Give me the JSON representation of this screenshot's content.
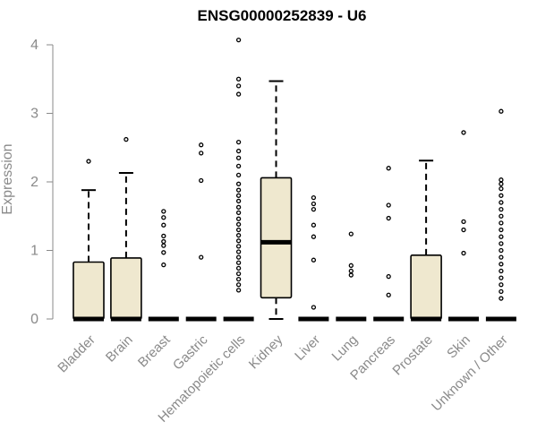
{
  "chart_data": {
    "type": "boxplot",
    "title": "ENSG00000252839 - U6",
    "xlabel": "",
    "ylabel": "Expression",
    "ylim": [
      0,
      4.1
    ],
    "yticks": [
      0,
      1,
      2,
      3,
      4
    ],
    "colors": {
      "box_fill": "#EFE8CF",
      "stroke": "#000000",
      "axis": "#8a8a8a"
    },
    "categories": [
      "Bladder",
      "Brain",
      "Breast",
      "Gastric",
      "Hematopoietic cells",
      "Kidney",
      "Liver",
      "Lung",
      "Pancreas",
      "Prostate",
      "Skin",
      "Unknown / Other"
    ],
    "boxes": [
      {
        "category": "Bladder",
        "whisker_low": 0,
        "q1": 0,
        "median": 0,
        "q3": 0.83,
        "whisker_high": 1.88,
        "outliers": [
          2.3
        ]
      },
      {
        "category": "Brain",
        "whisker_low": 0,
        "q1": 0,
        "median": 0,
        "q3": 0.89,
        "whisker_high": 2.13,
        "outliers": [
          2.62
        ]
      },
      {
        "category": "Breast",
        "whisker_low": 0,
        "q1": 0,
        "median": 0,
        "q3": 0,
        "whisker_high": 0,
        "outliers": [
          0.79,
          0.97,
          1.07,
          1.13,
          1.21,
          1.37,
          1.48,
          1.57
        ]
      },
      {
        "category": "Gastric",
        "whisker_low": 0,
        "q1": 0,
        "median": 0,
        "q3": 0,
        "whisker_high": 0,
        "outliers": [
          0.9,
          2.02,
          2.42,
          2.54
        ]
      },
      {
        "category": "Hematopoietic cells",
        "whisker_low": 0,
        "q1": 0,
        "median": 0,
        "q3": 0,
        "whisker_high": 0,
        "outliers": [
          0.42,
          0.5,
          0.58,
          0.66,
          0.74,
          0.82,
          0.9,
          0.98,
          1.06,
          1.14,
          1.22,
          1.3,
          1.38,
          1.46,
          1.55,
          1.63,
          1.72,
          1.8,
          1.88,
          1.97,
          2.1,
          2.23,
          2.35,
          2.45,
          2.58,
          3.28,
          3.4,
          3.5,
          4.07
        ]
      },
      {
        "category": "Kidney",
        "whisker_low": 0,
        "q1": 0.31,
        "median": 1.12,
        "q3": 2.06,
        "whisker_high": 3.47,
        "outliers": []
      },
      {
        "category": "Liver",
        "whisker_low": 0,
        "q1": 0,
        "median": 0,
        "q3": 0,
        "whisker_high": 0,
        "outliers": [
          0.17,
          0.86,
          1.2,
          1.37,
          1.6,
          1.68,
          1.77
        ]
      },
      {
        "category": "Lung",
        "whisker_low": 0,
        "q1": 0,
        "median": 0,
        "q3": 0,
        "whisker_high": 0,
        "outliers": [
          0.64,
          0.7,
          0.78,
          1.24
        ]
      },
      {
        "category": "Pancreas",
        "whisker_low": 0,
        "q1": 0,
        "median": 0,
        "q3": 0,
        "whisker_high": 0,
        "outliers": [
          0.35,
          0.62,
          1.47,
          1.66,
          2.2
        ]
      },
      {
        "category": "Prostate",
        "whisker_low": 0,
        "q1": 0,
        "median": 0,
        "q3": 0.93,
        "whisker_high": 2.31,
        "outliers": []
      },
      {
        "category": "Skin",
        "whisker_low": 0,
        "q1": 0,
        "median": 0,
        "q3": 0,
        "whisker_high": 0,
        "outliers": [
          0.96,
          1.3,
          1.42,
          2.72
        ]
      },
      {
        "category": "Unknown / Other",
        "whisker_low": 0,
        "q1": 0,
        "median": 0,
        "q3": 0,
        "whisker_high": 0,
        "outliers": [
          0.3,
          0.4,
          0.5,
          0.6,
          0.7,
          0.8,
          0.9,
          1.0,
          1.1,
          1.2,
          1.3,
          1.4,
          1.5,
          1.6,
          1.7,
          1.8,
          1.9,
          1.97,
          2.03,
          3.03
        ]
      }
    ],
    "grid": false,
    "legend": "none"
  }
}
